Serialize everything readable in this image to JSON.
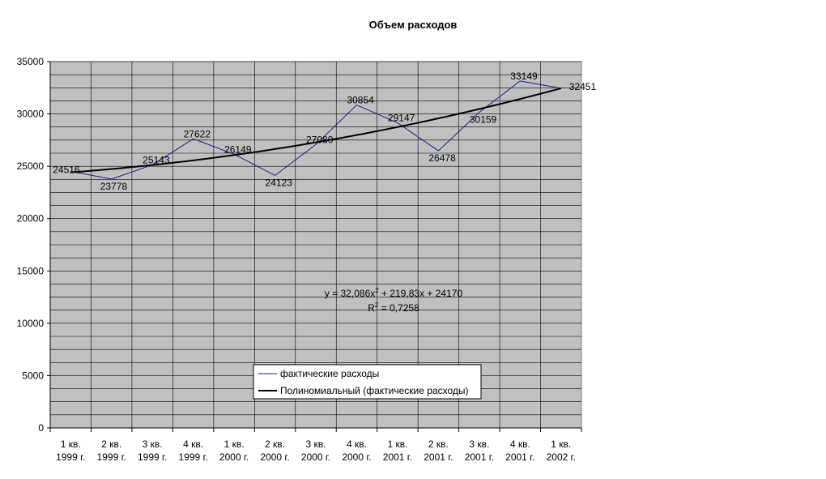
{
  "chart_data": {
    "type": "line",
    "title": "Объем расходов",
    "categories": [
      [
        "1 кв.",
        "1999 г."
      ],
      [
        "2 кв.",
        "1999 г."
      ],
      [
        "3 кв.",
        "1999 г."
      ],
      [
        "4 кв.",
        "1999 г."
      ],
      [
        "1 кв.",
        "2000 г."
      ],
      [
        "2 кв.",
        "2000 г."
      ],
      [
        "3 кв.",
        "2000 г."
      ],
      [
        "4 кв.",
        "2000 г."
      ],
      [
        "1 кв.",
        "2001 г."
      ],
      [
        "2 кв.",
        "2001 г."
      ],
      [
        "3 кв.",
        "2001 г."
      ],
      [
        "4 кв.",
        "2001 г."
      ],
      [
        "1 кв.",
        "2002 г."
      ]
    ],
    "series": [
      {
        "name": "фактические расходы",
        "color": "#1a1a8c",
        "values": [
          24516,
          23778,
          25143,
          27622,
          26149,
          24123,
          27080,
          30854,
          29147,
          26478,
          30159,
          33149,
          32451
        ],
        "labels": [
          "24516",
          "23778",
          "25143",
          "27622",
          "26149",
          "24123",
          "27080",
          "30854",
          "29147",
          "26478",
          "30159",
          "33149",
          "32451"
        ]
      },
      {
        "name": "Полиномиальный (фактические расходы)",
        "color": "#000000",
        "type": "trendline-poly2",
        "coefficients": {
          "a": 32.086,
          "b": 219.83,
          "c": 24170
        }
      }
    ],
    "ylim": [
      0,
      35000
    ],
    "yticks": [
      0,
      5000,
      10000,
      15000,
      20000,
      25000,
      30000,
      35000
    ],
    "ytick_labels": [
      "0",
      "5000",
      "10000",
      "15000",
      "20000",
      "25000",
      "30000",
      "35000"
    ],
    "grid": true,
    "plot_background": "#c0c0c0",
    "legend_position": "bottom-center",
    "equation": {
      "line1": "y = 32,086x",
      "exp": "2",
      "line1_rest": " + 219,83x + 24170",
      "r2_prefix": "R",
      "r2_exp": "2",
      "r2_rest": " = 0,7258"
    }
  }
}
